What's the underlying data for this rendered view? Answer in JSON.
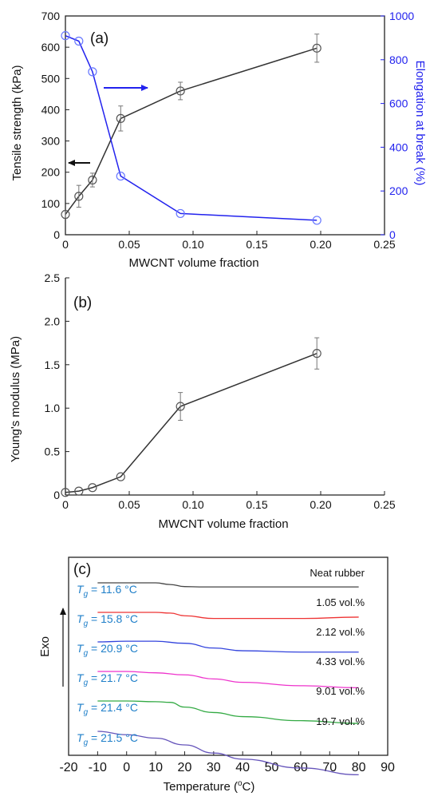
{
  "chart_data": [
    {
      "id": "a",
      "type": "line",
      "panel_label": "(a)",
      "xlabel": "MWCNT volume fraction",
      "ylabel": "Tensile strength (kPa)",
      "y2label": "Elongation at break (%)",
      "xlim": [
        0,
        0.25
      ],
      "ylim": [
        0,
        700
      ],
      "y2lim": [
        0,
        1000
      ],
      "xticks": [
        "0",
        "0.05",
        "0.10",
        "0.15",
        "0.20",
        "0.25"
      ],
      "yticks": [
        "0",
        "100",
        "200",
        "300",
        "400",
        "500",
        "600",
        "700"
      ],
      "y2ticks": [
        "0",
        "200",
        "400",
        "600",
        "800",
        "1000"
      ],
      "x": [
        0,
        0.0105,
        0.0212,
        0.0433,
        0.0901,
        0.197
      ],
      "series": [
        {
          "axis": "left",
          "color": "#333333",
          "values": [
            65,
            123,
            175,
            372,
            460,
            597
          ],
          "errors": [
            12,
            35,
            22,
            40,
            28,
            45
          ]
        },
        {
          "axis": "right",
          "color": "#2222ee",
          "values": [
            910,
            885,
            745,
            268,
            97,
            66
          ],
          "errors": []
        }
      ],
      "arrows": [
        {
          "direction": "left",
          "color": "#111111",
          "refers_to": "Tensile strength"
        },
        {
          "direction": "right",
          "color": "#2222ee",
          "refers_to": "Elongation at break"
        }
      ]
    },
    {
      "id": "b",
      "type": "line",
      "panel_label": "(b)",
      "xlabel": "MWCNT volume fraction",
      "ylabel": "Young's modulus (MPa)",
      "xlim": [
        0,
        0.25
      ],
      "ylim": [
        0,
        2.5
      ],
      "xticks": [
        "0",
        "0.05",
        "0.10",
        "0.15",
        "0.20",
        "0.25"
      ],
      "yticks": [
        "0",
        "0.5",
        "1.0",
        "1.5",
        "2.0",
        "2.5"
      ],
      "x": [
        0,
        0.0105,
        0.0212,
        0.0433,
        0.0901,
        0.197
      ],
      "series": [
        {
          "color": "#333333",
          "values": [
            0.03,
            0.045,
            0.085,
            0.21,
            1.02,
            1.63
          ],
          "errors": [
            0,
            0,
            0,
            0,
            0.16,
            0.18
          ]
        }
      ]
    },
    {
      "id": "c",
      "type": "line",
      "panel_label": "(c)",
      "xlabel": "Temperature (°C)",
      "ylabel": "Exo",
      "xlim": [
        -20,
        90
      ],
      "xticks": [
        "-20",
        "-10",
        "0",
        "10",
        "20",
        "30",
        "40",
        "50",
        "60",
        "70",
        "80",
        "90"
      ],
      "tg_prefix": "T",
      "tg_sub": "g",
      "series": [
        {
          "name": "Neat rubber",
          "tg": "= 11.6 °C",
          "color": "#444444",
          "x": [
            -10,
            0,
            10,
            15,
            20,
            25,
            40,
            60,
            80
          ],
          "offsets": [
            0,
            0,
            0,
            0.25,
            0.55,
            0.6,
            0.6,
            0.6,
            0.6
          ]
        },
        {
          "name": "1.05 vol.%",
          "tg": "= 15.8 °C",
          "color": "#ee3333",
          "x": [
            -10,
            0,
            10,
            15,
            20,
            30,
            40,
            60,
            80
          ],
          "offsets": [
            0,
            0,
            0,
            0.1,
            0.5,
            0.9,
            0.9,
            0.9,
            0.7
          ]
        },
        {
          "name": "2.12 vol.%",
          "tg": "= 20.9 °C",
          "color": "#3344dd",
          "x": [
            -10,
            0,
            10,
            20,
            30,
            40,
            60,
            80
          ],
          "offsets": [
            0,
            -0.1,
            -0.1,
            0.2,
            0.9,
            1.3,
            1.5,
            1.5
          ]
        },
        {
          "name": "4.33 vol.%",
          "tg": "= 21.7 °C",
          "color": "#ee33cc",
          "x": [
            -10,
            0,
            10,
            20,
            30,
            40,
            60,
            80
          ],
          "offsets": [
            0,
            0,
            0.2,
            0.5,
            1.1,
            1.6,
            2.1,
            2.4
          ]
        },
        {
          "name": "9.01 vol.%",
          "tg": "= 21.4 °C",
          "color": "#33aa44",
          "x": [
            -10,
            0,
            10,
            15,
            20,
            30,
            40,
            60,
            80
          ],
          "offsets": [
            0,
            0,
            0.1,
            0.2,
            0.9,
            1.7,
            2.3,
            2.9,
            3.3
          ]
        },
        {
          "name": "19.7 vol.%",
          "tg": "= 21.5 °C",
          "color": "#6655bb",
          "x": [
            -10,
            0,
            10,
            20,
            30,
            40,
            60,
            80
          ],
          "offsets": [
            0,
            0.5,
            1.0,
            2.0,
            3.2,
            4.1,
            5.4,
            6.4
          ]
        }
      ]
    }
  ]
}
